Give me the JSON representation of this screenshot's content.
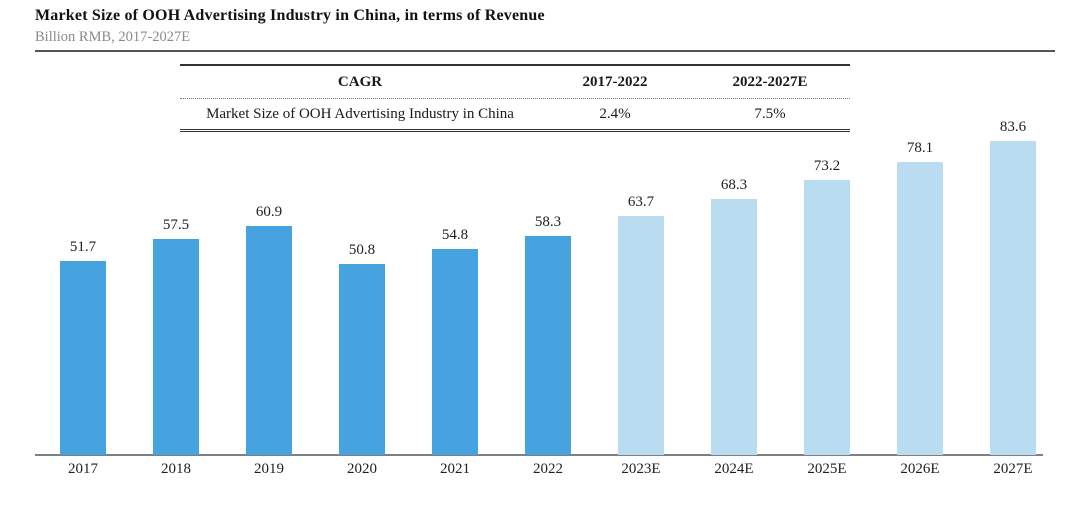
{
  "page": {
    "title": "Market Size of OOH Advertising Industry in China, in terms of Revenue",
    "subtitle": "Billion RMB, 2017-2027E"
  },
  "cagr_table": {
    "headers": [
      "CAGR",
      "2017-2022",
      "2022-2027E"
    ],
    "rows": [
      {
        "label": "Market Size of OOH Advertising Industry in China",
        "cagr_2017_2022": "2.4%",
        "cagr_2022_2027e": "7.5%"
      }
    ]
  },
  "chart_data": {
    "type": "bar",
    "title": "Market Size of OOH Advertising Industry in China, in terms of Revenue",
    "subtitle": "Billion RMB, 2017-2027E",
    "unit": "Billion RMB",
    "categories": [
      "2017",
      "2018",
      "2019",
      "2020",
      "2021",
      "2022",
      "2023E",
      "2024E",
      "2025E",
      "2026E",
      "2027E"
    ],
    "values": [
      51.7,
      57.5,
      60.9,
      50.8,
      54.8,
      58.3,
      63.7,
      68.3,
      73.2,
      78.1,
      83.6
    ],
    "value_labels": [
      "51.7",
      "57.5",
      "60.9",
      "50.8",
      "54.8",
      "58.3",
      "63.7",
      "68.3",
      "73.2",
      "78.1",
      "83.6"
    ],
    "segments": [
      "historical",
      "historical",
      "historical",
      "historical",
      "historical",
      "historical",
      "forecast",
      "forecast",
      "forecast",
      "forecast",
      "forecast"
    ],
    "colors": {
      "historical": "#47A3DF",
      "forecast": "#BADCF0"
    },
    "xlabel": "",
    "ylabel": "",
    "ylim": [
      0,
      90
    ],
    "grid": false,
    "legend": false,
    "y_axis_shown": false,
    "value_labels_shown": true
  }
}
